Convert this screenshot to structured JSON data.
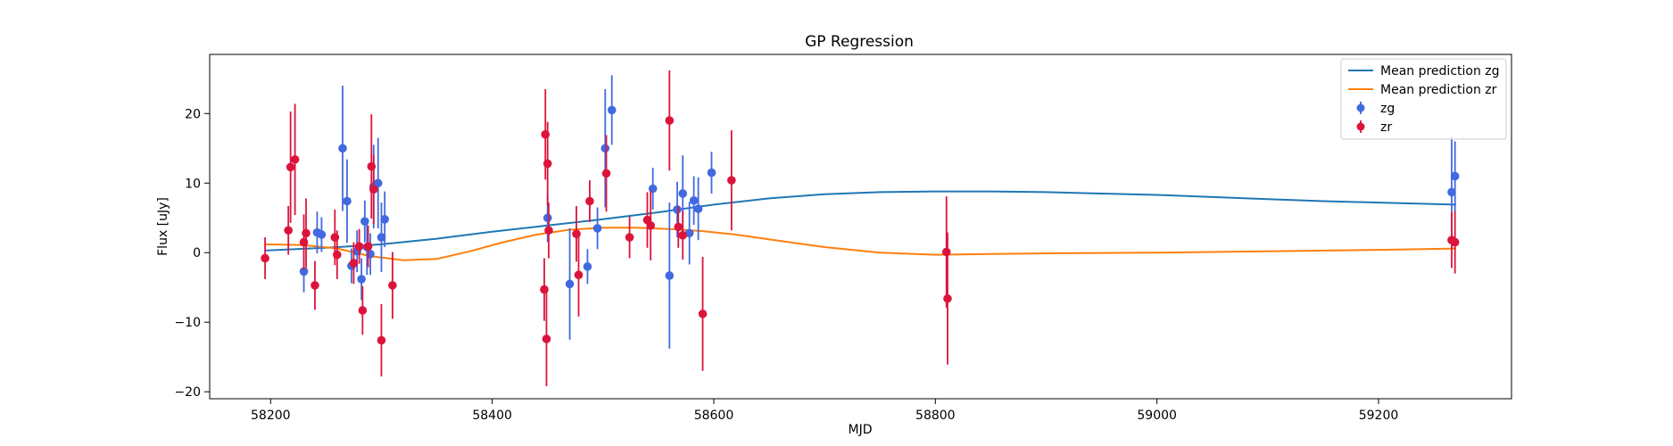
{
  "chart_data": {
    "type": "scatter",
    "title": "GP Regression",
    "xlabel": "MJD",
    "ylabel": "Flux [uJy]",
    "xlim": [
      58145,
      59320
    ],
    "ylim": [
      -21,
      28.5
    ],
    "xticks": [
      58200,
      58400,
      58600,
      58800,
      59000,
      59200
    ],
    "yticks": [
      -20,
      -10,
      0,
      10,
      20
    ],
    "grid": false,
    "legend_position": "top-right",
    "legend": [
      {
        "label": "Mean prediction zg",
        "kind": "line",
        "color": "#1f77b4"
      },
      {
        "label": "Mean prediction zr",
        "kind": "line",
        "color": "#ff7f0e"
      },
      {
        "label": "zg",
        "kind": "errorbar",
        "color": "#4169e1"
      },
      {
        "label": "zr",
        "kind": "errorbar",
        "color": "#dc143c"
      }
    ],
    "lines": [
      {
        "name": "Mean prediction zg",
        "color": "#1f77b4",
        "x": [
          58195,
          58250,
          58300,
          58350,
          58400,
          58450,
          58500,
          58550,
          58600,
          58650,
          58700,
          58750,
          58800,
          58850,
          58900,
          58950,
          59000,
          59050,
          59100,
          59150,
          59200,
          59250,
          59270
        ],
        "y": [
          0.3,
          0.7,
          1.2,
          2.0,
          3.0,
          3.9,
          4.8,
          5.8,
          6.9,
          7.8,
          8.4,
          8.7,
          8.8,
          8.8,
          8.7,
          8.5,
          8.3,
          8.0,
          7.7,
          7.4,
          7.2,
          7.0,
          6.9
        ]
      },
      {
        "name": "Mean prediction zr",
        "color": "#ff7f0e",
        "x": [
          58195,
          58230,
          58260,
          58290,
          58320,
          58350,
          58380,
          58410,
          58440,
          58470,
          58500,
          58530,
          58560,
          58590,
          58620,
          58650,
          58700,
          58750,
          58800,
          58850,
          58900,
          59000,
          59100,
          59200,
          59270
        ],
        "y": [
          1.2,
          1.1,
          0.6,
          -0.5,
          -1.1,
          -0.9,
          0.2,
          1.5,
          2.6,
          3.3,
          3.6,
          3.6,
          3.4,
          3.1,
          2.6,
          1.9,
          0.8,
          0.0,
          -0.3,
          -0.2,
          -0.1,
          0.0,
          0.2,
          0.4,
          0.6
        ]
      }
    ],
    "series": [
      {
        "name": "zg",
        "color": "#4169e1",
        "x": [
          58230,
          58242,
          58246,
          58265,
          58269,
          58273,
          58278,
          58282,
          58285,
          58287,
          58290,
          58293,
          58297,
          58300,
          58303,
          58450,
          58470,
          58486,
          58495,
          58502,
          58508,
          58545,
          58560,
          58567,
          58572,
          58578,
          58582,
          58586,
          58598,
          59266,
          59269
        ],
        "y": [
          -2.7,
          2.9,
          2.6,
          15.0,
          7.4,
          -1.9,
          0.2,
          -3.8,
          4.5,
          0.8,
          -0.2,
          9.5,
          10.0,
          2.2,
          4.8,
          5.0,
          -4.5,
          -2.0,
          3.5,
          15.0,
          20.5,
          9.2,
          -3.3,
          6.2,
          8.5,
          2.8,
          7.5,
          6.3,
          11.5,
          8.7,
          11.0
        ],
        "err": [
          3.0,
          3.0,
          2.5,
          9.0,
          6.0,
          2.5,
          3.0,
          3.0,
          3.0,
          4.0,
          3.0,
          6.0,
          6.5,
          5.0,
          4.0,
          3.5,
          8.0,
          2.5,
          3.0,
          8.5,
          5.0,
          3.0,
          10.5,
          4.0,
          5.5,
          4.5,
          3.5,
          4.5,
          3.0,
          8.0,
          5.0
        ]
      },
      {
        "name": "zr",
        "color": "#dc143c",
        "x": [
          58195,
          58216,
          58218,
          58222,
          58230,
          58232,
          58240,
          58258,
          58260,
          58275,
          58280,
          58283,
          58288,
          58291,
          58293,
          58300,
          58310,
          58447,
          58448,
          58449,
          58450,
          58451,
          58476,
          58478,
          58488,
          58503,
          58524,
          58540,
          58543,
          58560,
          58568,
          58572,
          58590,
          58616,
          58810,
          58811,
          59266,
          59269
        ],
        "y": [
          -0.8,
          3.2,
          12.3,
          13.4,
          1.5,
          2.8,
          -4.7,
          2.2,
          -0.3,
          -1.5,
          0.9,
          -8.3,
          0.9,
          12.4,
          9.1,
          -12.6,
          -4.7,
          -5.3,
          17.0,
          -12.4,
          12.8,
          3.2,
          2.7,
          -3.2,
          7.4,
          11.4,
          2.2,
          4.7,
          3.9,
          19.0,
          3.7,
          2.5,
          -8.8,
          10.4,
          0.1,
          -6.6,
          1.8,
          1.5
        ],
        "err": [
          3.0,
          3.5,
          8.0,
          8.0,
          4.0,
          5.0,
          3.5,
          4.0,
          3.5,
          3.0,
          2.5,
          3.5,
          3.0,
          7.5,
          5.0,
          5.2,
          4.8,
          4.5,
          6.5,
          6.8,
          6.0,
          4.0,
          4.0,
          6.0,
          3.0,
          5.5,
          3.0,
          4.0,
          5.0,
          7.2,
          3.0,
          3.5,
          8.2,
          7.2,
          8.0,
          9.5,
          4.0,
          4.5
        ]
      }
    ]
  }
}
